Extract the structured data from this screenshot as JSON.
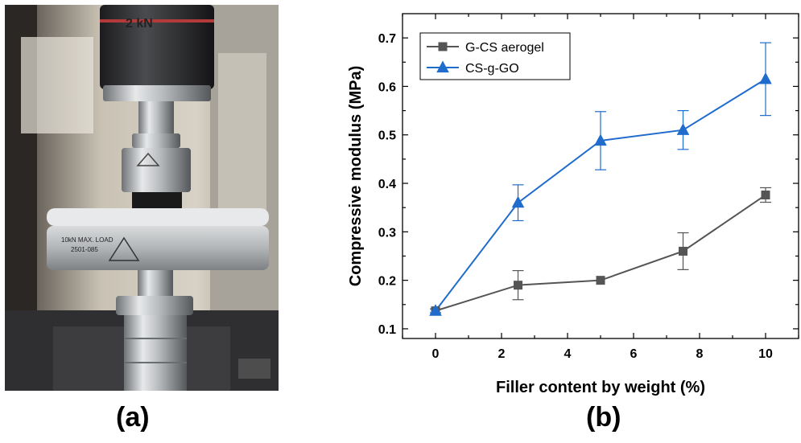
{
  "panels": {
    "a_label": "(a)",
    "b_label": "(b)"
  },
  "photo": {
    "load_cell_text": "2 kN",
    "plate_text_line1": "10kN MAX. LOAD",
    "plate_text_line2": "2501-085"
  },
  "chart_data": {
    "type": "line",
    "xlabel": "Filler content by weight (%)",
    "ylabel": "Compressive modulus (MPa)",
    "xlim": [
      -1,
      11
    ],
    "ylim": [
      0.08,
      0.75
    ],
    "xticks": [
      0,
      2,
      4,
      6,
      8,
      10
    ],
    "yticks": [
      0.1,
      0.2,
      0.3,
      0.4,
      0.5,
      0.6,
      0.7
    ],
    "grid": false,
    "legend_position": "top-left",
    "series": [
      {
        "name": "G-CS aerogel",
        "marker": "square",
        "color": "#555555",
        "x": [
          0,
          2.5,
          5,
          7.5,
          10
        ],
        "y": [
          0.137,
          0.19,
          0.2,
          0.26,
          0.376
        ],
        "err": [
          0.004,
          0.03,
          0.0,
          0.038,
          0.015
        ]
      },
      {
        "name": "CS-g-GO",
        "marker": "triangle",
        "color": "#1f6ccd",
        "x": [
          0,
          2.5,
          5,
          7.5,
          10
        ],
        "y": [
          0.137,
          0.36,
          0.488,
          0.51,
          0.615
        ],
        "err": [
          0.004,
          0.037,
          0.06,
          0.04,
          0.075
        ]
      }
    ]
  }
}
